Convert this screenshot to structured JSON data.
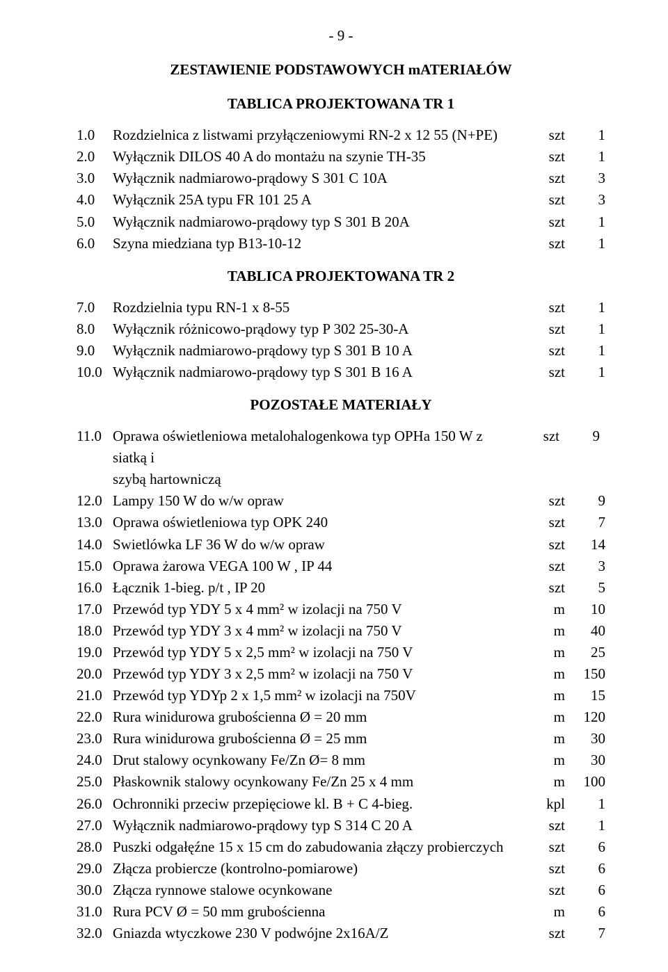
{
  "page_number_line": "-  9  -",
  "main_title": "ZESTAWIENIE  PODSTAWOWYCH  mATERIAŁÓW",
  "section1_title": "TABLICA  PROJEKTOWANA  TR 1",
  "section1": [
    {
      "n": "1.0",
      "d": "Rozdzielnica z listwami przyłączeniowymi RN-2 x 12 55 (N+PE)",
      "u": "szt",
      "q": "1"
    },
    {
      "n": "2.0",
      "d": "Wyłącznik DILOS 40 A do montażu na szynie TH-35",
      "u": "szt",
      "q": "1"
    },
    {
      "n": "3.0",
      "d": "Wyłącznik nadmiarowo-prądowy S 301 C 10A",
      "u": "szt",
      "q": "3"
    },
    {
      "n": "4.0",
      "d": "Wyłącznik 25A typu FR 101 25 A",
      "u": "szt",
      "q": "3"
    },
    {
      "n": "5.0",
      "d": "Wyłącznik nadmiarowo-prądowy typ S 301 B 20A",
      "u": "szt",
      "q": "1"
    },
    {
      "n": "6.0",
      "d": "Szyna miedziana typ B13-10-12",
      "u": "szt",
      "q": "1"
    }
  ],
  "section2_title": "TABLICA  PROJEKTOWANA  TR 2",
  "section2": [
    {
      "n": "7.0",
      "d": "Rozdzielnia typu  RN-1 x 8-55",
      "u": "szt",
      "q": "1"
    },
    {
      "n": "8.0",
      "d": "Wyłącznik różnicowo-prądowy typ P 302 25-30-A",
      "u": "szt",
      "q": "1"
    },
    {
      "n": "9.0",
      "d": "Wyłącznik nadmiarowo-prądowy typ S 301 B 10 A",
      "u": "szt",
      "q": "1"
    },
    {
      "n": "10.0",
      "d": "Wyłącznik nadmiarowo-prądowy typ S 301 B 16 A",
      "u": "szt",
      "q": "1"
    }
  ],
  "section3_title": "POZOSTAŁE  MATERIAŁY",
  "item11": {
    "n": "11.0",
    "d1": "Oprawa oświetleniowa metalohalogenkowa typ OPHa 150 W z siatką i",
    "d2": "szybą hartowniczą",
    "u": "szt",
    "q": "9"
  },
  "section3": [
    {
      "n": "12.0",
      "d": "Lampy 150 W do w/w opraw",
      "u": "szt",
      "q": "9"
    },
    {
      "n": "13.0",
      "d": "Oprawa oświetleniowa typ OPK 240",
      "u": "szt",
      "q": "7"
    },
    {
      "n": "14.0",
      "d": "Swietlówka LF 36 W do w/w opraw",
      "u": "szt",
      "q": "14"
    },
    {
      "n": "15.0",
      "d": "Oprawa żarowa VEGA 100 W , IP 44",
      "u": "szt",
      "q": "3"
    },
    {
      "n": "16.0",
      "d": "Łącznik 1-bieg. p/t , IP 20",
      "u": "szt",
      "q": "5"
    },
    {
      "n": "17.0",
      "d": "Przewód typ YDY 5 x 4 mm² w izolacji na 750 V",
      "u": "m",
      "q": "10"
    },
    {
      "n": "18.0",
      "d": "Przewód typ YDY 3 x 4 mm² w izolacji na 750 V",
      "u": "m",
      "q": "40"
    },
    {
      "n": "19.0",
      "d": "Przewód typ YDY 5 x 2,5 mm² w izolacji na 750 V",
      "u": "m",
      "q": "25"
    },
    {
      "n": "20.0",
      "d": "Przewód typ YDY 3 x 2,5 mm² w izolacji na 750 V",
      "u": "m",
      "q": "150"
    },
    {
      "n": "21.0",
      "d": "Przewód typ YDYp 2 x 1,5 mm² w izolacji na 750V",
      "u": "m",
      "q": "15"
    },
    {
      "n": "22.0",
      "d": "Rura winidurowa grubościenna Ø = 20 mm",
      "u": "m",
      "q": "120"
    },
    {
      "n": "23.0",
      "d": "Rura winidurowa grubościenna Ø = 25 mm",
      "u": "m",
      "q": "30"
    },
    {
      "n": "24.0",
      "d": "Drut stalowy ocynkowany Fe/Zn Ø= 8 mm",
      "u": "m",
      "q": "30"
    },
    {
      "n": "25.0",
      "d": "Płaskownik stalowy ocynkowany Fe/Zn 25 x 4 mm",
      "u": "m",
      "q": "100"
    },
    {
      "n": "26.0",
      "d": "Ochronniki przeciw przepięciowe kl. B + C 4-bieg.",
      "u": "kpl",
      "q": "1"
    },
    {
      "n": "27.0",
      "d": "Wyłącznik nadmiarowo-prądowy typ S 314 C 20 A",
      "u": "szt",
      "q": "1"
    },
    {
      "n": "28.0",
      "d": "Puszki odgałęźne 15 x 15 cm  do zabudowania złączy probierczych",
      "u": "szt",
      "q": "6"
    },
    {
      "n": "29.0",
      "d": "Złącza probiercze (kontrolno-pomiarowe)",
      "u": "szt",
      "q": "6"
    },
    {
      "n": "30.0",
      "d": "Złącza rynnowe stalowe ocynkowane",
      "u": "szt",
      "q": "6"
    },
    {
      "n": "31.0",
      "d": "Rura PCV Ø = 50 mm grubościenna",
      "u": "m",
      "q": "6"
    },
    {
      "n": "32.0",
      "d": "Gniazda wtyczkowe 230 V podwójne 2x16A/Z",
      "u": "szt",
      "q": "7"
    }
  ]
}
